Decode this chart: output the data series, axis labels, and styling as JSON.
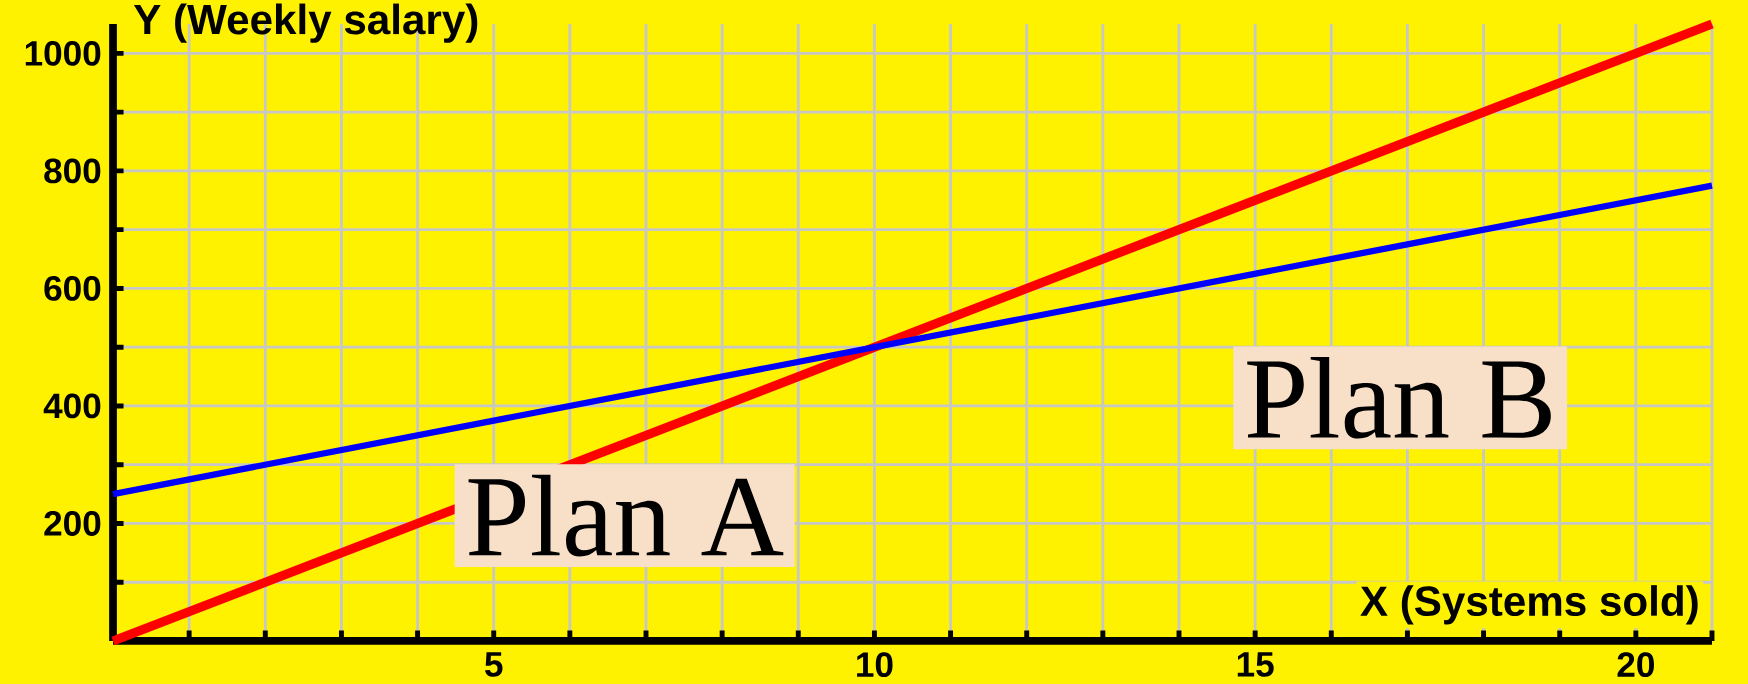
{
  "chart_data": {
    "type": "line",
    "xlabel": "X (Systems sold)",
    "ylabel": "Y (Weekly salary)",
    "x": [
      0,
      21
    ],
    "series": [
      {
        "name": "Plan A",
        "color": "#ff0000",
        "values": [
          0,
          1050
        ]
      },
      {
        "name": "Plan B",
        "color": "#0000ff",
        "values": [
          250,
          775
        ]
      }
    ],
    "xlim": [
      0,
      21
    ],
    "ylim": [
      0,
      1050
    ],
    "xticks": [
      {
        "value": 0,
        "label": null
      },
      {
        "value": 1,
        "label": null
      },
      {
        "value": 2,
        "label": null
      },
      {
        "value": 3,
        "label": null
      },
      {
        "value": 4,
        "label": null
      },
      5,
      {
        "value": 6,
        "label": null
      },
      {
        "value": 7,
        "label": null
      },
      {
        "value": 8,
        "label": null
      },
      {
        "value": 9,
        "label": null
      },
      10,
      {
        "value": 11,
        "label": null
      },
      {
        "value": 12,
        "label": null
      },
      {
        "value": 13,
        "label": null
      },
      {
        "value": 14,
        "label": null
      },
      15,
      {
        "value": 16,
        "label": null
      },
      {
        "value": 17,
        "label": null
      },
      {
        "value": 18,
        "label": null
      },
      {
        "value": 19,
        "label": null
      },
      20,
      {
        "value": 21,
        "label": null
      }
    ],
    "yticks": [
      {
        "value": 0,
        "label": null
      },
      {
        "value": 100,
        "label": null
      },
      200,
      {
        "value": 300,
        "label": null
      },
      400,
      {
        "value": 500,
        "label": null
      },
      600,
      {
        "value": 700,
        "label": null
      },
      800,
      {
        "value": 900,
        "label": null
      },
      1000
    ],
    "grid": true,
    "marker": "none",
    "line_style": "solid"
  }
}
